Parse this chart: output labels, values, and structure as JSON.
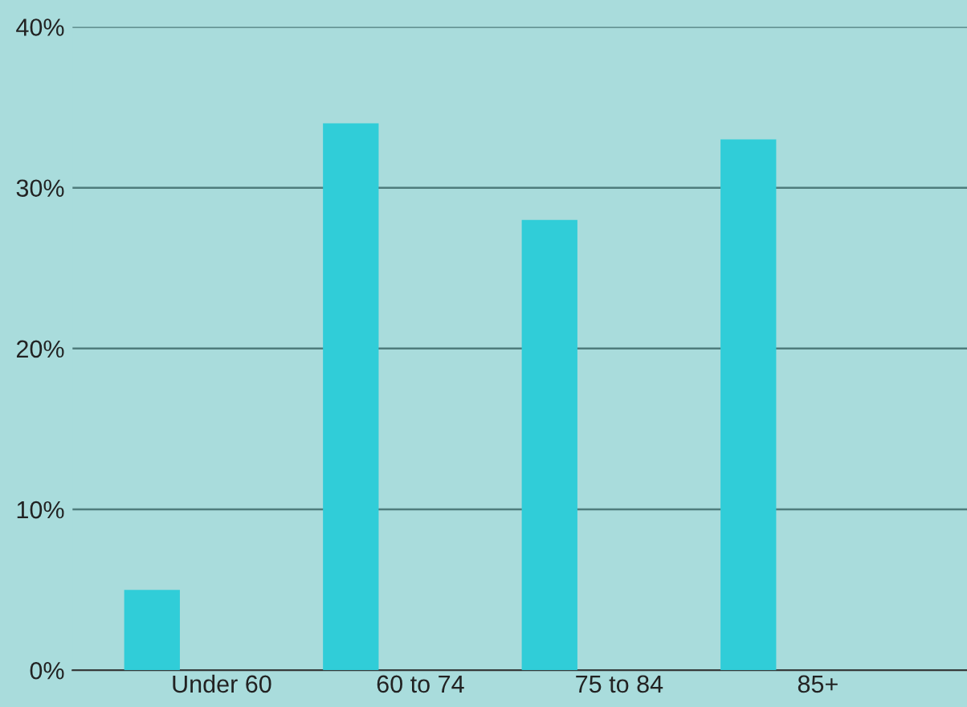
{
  "chart_data": {
    "type": "bar",
    "categories": [
      "Under 60",
      "60 to 74",
      "75 to 84",
      "85+"
    ],
    "values": [
      5,
      34,
      28,
      33
    ],
    "color": "#30cdd8",
    "ylim": [
      0,
      40
    ],
    "yticks": [
      {
        "value": 0,
        "label": "0%"
      },
      {
        "value": 10,
        "label": "10%"
      },
      {
        "value": 20,
        "label": "20%"
      },
      {
        "value": 30,
        "label": "30%"
      },
      {
        "value": 40,
        "label": "40%"
      }
    ],
    "grid": "y"
  }
}
